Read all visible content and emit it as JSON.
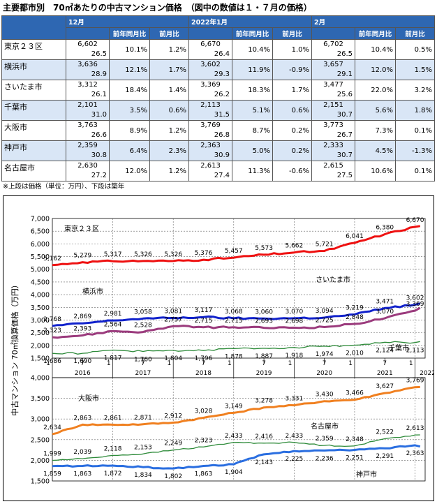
{
  "title": "主要都市別　70㎡あたりの中古マンション価格　（図中の数値は１・７月の価格）",
  "table": {
    "period_headers": [
      "12月",
      "2022年1月",
      "2月"
    ],
    "sub_headers": [
      "前年同月比",
      "前月比"
    ],
    "rows": [
      {
        "city": "東京２３区",
        "style": "white",
        "cells": [
          {
            "price": "6,602",
            "age": "26.5",
            "yoy": "10.1%",
            "mom": "1.2%"
          },
          {
            "price": "6,670",
            "age": "26.4",
            "yoy": "10.4%",
            "mom": "1.0%"
          },
          {
            "price": "6,702",
            "age": "26.5",
            "yoy": "10.4%",
            "mom": "0.5%"
          }
        ]
      },
      {
        "city": "横浜市",
        "style": "blue",
        "cells": [
          {
            "price": "3,636",
            "age": "28.9",
            "yoy": "12.1%",
            "mom": "1.7%"
          },
          {
            "price": "3,602",
            "age": "29.3",
            "yoy": "11.9%",
            "mom": "-0.9%"
          },
          {
            "price": "3,657",
            "age": "29.1",
            "yoy": "12.0%",
            "mom": "1.5%"
          }
        ]
      },
      {
        "city": "さいたま市",
        "style": "white",
        "cells": [
          {
            "price": "3,312",
            "age": "26.1",
            "yoy": "18.4%",
            "mom": "1.4%"
          },
          {
            "price": "3,369",
            "age": "26.2",
            "yoy": "18.3%",
            "mom": "1.7%"
          },
          {
            "price": "3,477",
            "age": "25.6",
            "yoy": "22.0%",
            "mom": "3.2%"
          }
        ]
      },
      {
        "city": "千葉市",
        "style": "blue",
        "cells": [
          {
            "price": "2,101",
            "age": "31.0",
            "yoy": "3.5%",
            "mom": "0.6%"
          },
          {
            "price": "2,113",
            "age": "31.5",
            "yoy": "5.1%",
            "mom": "0.6%"
          },
          {
            "price": "2,151",
            "age": "30.7",
            "yoy": "5.6%",
            "mom": "1.8%"
          }
        ]
      },
      {
        "city": "大阪市",
        "style": "white",
        "cells": [
          {
            "price": "3,763",
            "age": "26.6",
            "yoy": "8.9%",
            "mom": "1.2%"
          },
          {
            "price": "3,769",
            "age": "26.8",
            "yoy": "8.7%",
            "mom": "0.2%"
          },
          {
            "price": "3,773",
            "age": "26.7",
            "yoy": "7.3%",
            "mom": "0.1%"
          }
        ]
      },
      {
        "city": "神戸市",
        "style": "blue",
        "cells": [
          {
            "price": "2,359",
            "age": "30.8",
            "yoy": "6.4%",
            "mom": "2.3%"
          },
          {
            "price": "2,363",
            "age": "30.9",
            "yoy": "5.0%",
            "mom": "0.2%"
          },
          {
            "price": "2,333",
            "age": "30.7",
            "yoy": "4.5%",
            "mom": "-1.3%"
          }
        ]
      },
      {
        "city": "名古屋市",
        "style": "white",
        "cells": [
          {
            "price": "2,630",
            "age": "27.2",
            "yoy": "12.0%",
            "mom": "1.2%"
          },
          {
            "price": "2,613",
            "age": "27.4",
            "yoy": "11.3%",
            "mom": "-0.6%"
          },
          {
            "price": "2,615",
            "age": "27.5",
            "yoy": "10.6%",
            "mom": "0.1%"
          }
        ]
      }
    ]
  },
  "note": "※上段は価格（単位：万円）、下段は築年",
  "chart_data": {
    "type": "line",
    "ylabel": "中古マンション 70㎡換算価格（万円）",
    "x_axis": {
      "start": "2016-01",
      "end": "2022-02",
      "tick_months": [
        "1",
        "7"
      ],
      "years": [
        "2016",
        "2017",
        "2018",
        "2019",
        "2020",
        "2021",
        "2022"
      ]
    },
    "panels": [
      {
        "ylim": [
          1500,
          7000
        ],
        "yticks": [
          "1,500",
          "2,000",
          "2,500",
          "3,000",
          "3,500",
          "4,000",
          "4,500",
          "5,000",
          "5,500",
          "6,000",
          "6,500",
          "7,000"
        ],
        "ytick_values": [
          1500,
          2000,
          2500,
          3000,
          3500,
          4000,
          4500,
          5000,
          5500,
          6000,
          6500,
          7000
        ],
        "series": [
          {
            "name": "東京２３区",
            "color": "#ee1111",
            "labels": [
              "5,162",
              "5,279",
              "5,317",
              "5,326",
              "5,326",
              "5,376",
              "5,457",
              "5,573",
              "5,662",
              "5,721",
              "6,041",
              "6,380",
              "6,670"
            ],
            "values": [
              5162,
              5279,
              5317,
              5326,
              5326,
              5376,
              5457,
              5573,
              5662,
              5721,
              6041,
              6380,
              6670
            ],
            "last": 6702
          },
          {
            "name": "横浜市",
            "color": "#1122cc",
            "labels": [
              "2,768",
              "2,869",
              "2,981",
              "3,058",
              "3,081",
              "3,117",
              "3,068",
              "3,060",
              "3,070",
              "3,094",
              "3,219",
              "3,471",
              "3,602"
            ],
            "values": [
              2768,
              2869,
              2981,
              3058,
              3081,
              3117,
              3068,
              3060,
              3070,
              3094,
              3219,
              3471,
              3602
            ],
            "last": 3657
          },
          {
            "name": "さいたま市",
            "color": "#9b3b7d",
            "labels": [
              "2,323",
              "2,393",
              "2,564",
              "2,528",
              "2,757",
              "2,715",
              "2,715",
              "2,693",
              "2,698",
              "2,725",
              "2,848",
              "3,070",
              "3,369"
            ],
            "values": [
              2323,
              2393,
              2564,
              2528,
              2757,
              2715,
              2715,
              2693,
              2698,
              2725,
              2848,
              3070,
              3369
            ],
            "last": 3477
          },
          {
            "name": "千葉市",
            "color": "#2e8b3a",
            "labels": [
              "1,686",
              "1,690",
              "1,817",
              "1,760",
              "1,804",
              "1,796",
              "1,878",
              "1,887",
              "1,918",
              "1,974",
              "2,010",
              "2,124",
              "2,113"
            ],
            "values": [
              1686,
              1690,
              1817,
              1760,
              1804,
              1796,
              1878,
              1887,
              1918,
              1974,
              2010,
              2124,
              2113
            ],
            "last": 2151
          }
        ]
      },
      {
        "ylim": [
          1500,
          4000
        ],
        "yticks": [
          "1,500",
          "2,000",
          "2,500",
          "3,000",
          "3,500",
          "4,000"
        ],
        "ytick_values": [
          1500,
          2000,
          2500,
          3000,
          3500,
          4000
        ],
        "series": [
          {
            "name": "大阪市",
            "color": "#f08020",
            "labels": [
              "2,634",
              "2,863",
              "2,861",
              "2,871",
              "2,912",
              "3,028",
              "3,149",
              "3,278",
              "3,331",
              "3,430",
              "3,466",
              "3,627",
              "3,769"
            ],
            "values": [
              2634,
              2863,
              2861,
              2871,
              2912,
              3028,
              3149,
              3278,
              3331,
              3430,
              3466,
              3627,
              3769
            ],
            "last": 3773
          },
          {
            "name": "名古屋市",
            "color": "#2e8b3a",
            "labels": [
              "1,999",
              "2,039",
              "2,118",
              "2,153",
              "2,249",
              "2,323",
              "2,433",
              "2,416",
              "2,433",
              "2,359",
              "2,348",
              "2,522",
              "2,613"
            ],
            "values": [
              1999,
              2039,
              2118,
              2153,
              2249,
              2323,
              2433,
              2416,
              2433,
              2359,
              2348,
              2522,
              2613
            ],
            "last": 2615
          },
          {
            "name": "神戸市",
            "color": "#2a6ee0",
            "labels": [
              "1,859",
              "1,863",
              "1,872",
              "1,834",
              "1,802",
              "1,863",
              "1,904",
              "2,143",
              "2,225",
              "2,236",
              "2,251",
              "2,291",
              "2,363"
            ],
            "values": [
              1859,
              1863,
              1872,
              1834,
              1802,
              1863,
              1904,
              2143,
              2225,
              2236,
              2251,
              2291,
              2363
            ],
            "last": 2333
          }
        ]
      }
    ]
  }
}
